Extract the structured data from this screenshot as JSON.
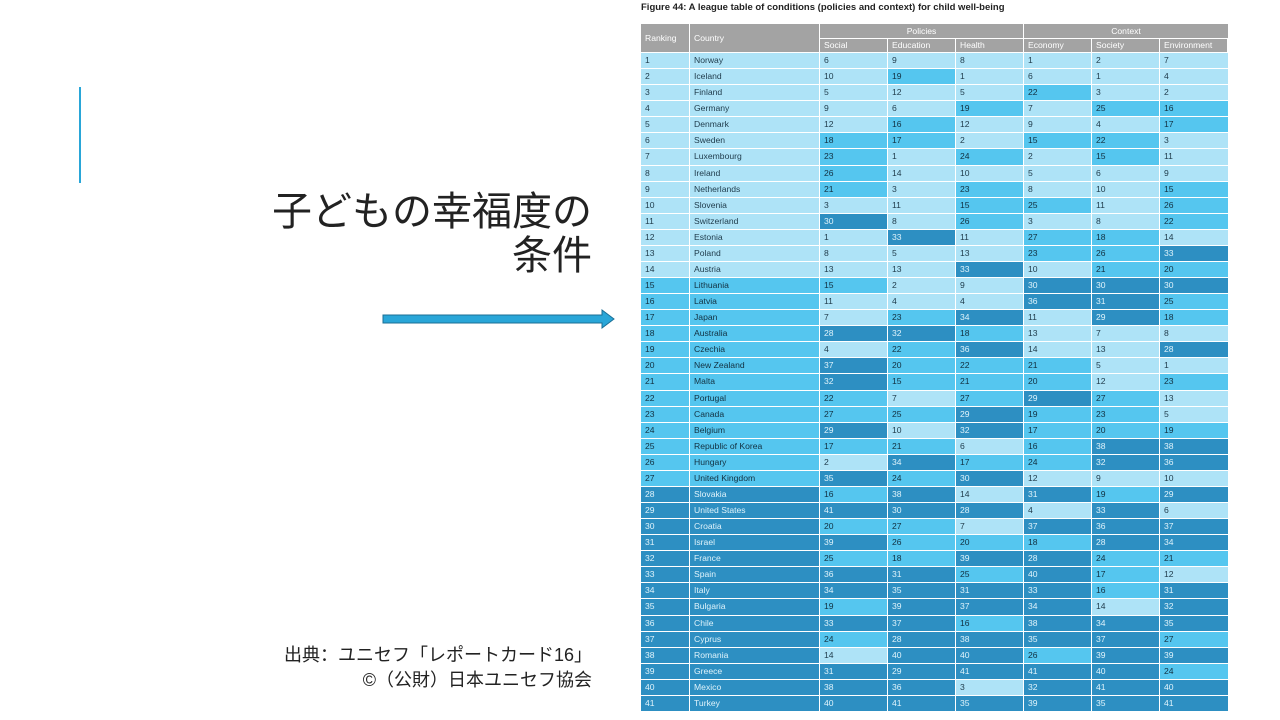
{
  "slide": {
    "title_lines": [
      "子どもの幸福度の",
      "条件"
    ],
    "source_lines": [
      "出典：ユニセフ「レポートカード16」",
      "©（公財）日本ユニセフ協会"
    ]
  },
  "table": {
    "title": "Figure 44: A league table of conditions (policies and context) for child well-being",
    "group_headers": [
      "Policies",
      "Context"
    ],
    "columns": [
      "Ranking",
      "Country",
      "Social",
      "Education",
      "Health",
      "Economy",
      "Society",
      "Environment"
    ],
    "rows": [
      [
        1,
        "Norway",
        6,
        9,
        8,
        1,
        2,
        7
      ],
      [
        2,
        "Iceland",
        10,
        19,
        1,
        6,
        1,
        4
      ],
      [
        3,
        "Finland",
        5,
        12,
        5,
        22,
        3,
        2
      ],
      [
        4,
        "Germany",
        9,
        6,
        19,
        7,
        25,
        16
      ],
      [
        5,
        "Denmark",
        12,
        16,
        12,
        9,
        4,
        17
      ],
      [
        6,
        "Sweden",
        18,
        17,
        2,
        15,
        22,
        3
      ],
      [
        7,
        "Luxembourg",
        23,
        1,
        24,
        2,
        15,
        11
      ],
      [
        8,
        "Ireland",
        26,
        14,
        10,
        5,
        6,
        9
      ],
      [
        9,
        "Netherlands",
        21,
        3,
        23,
        8,
        10,
        15
      ],
      [
        10,
        "Slovenia",
        3,
        11,
        15,
        25,
        11,
        26
      ],
      [
        11,
        "Switzerland",
        30,
        8,
        26,
        3,
        8,
        22
      ],
      [
        12,
        "Estonia",
        1,
        33,
        11,
        27,
        18,
        14
      ],
      [
        13,
        "Poland",
        8,
        5,
        13,
        23,
        26,
        33
      ],
      [
        14,
        "Austria",
        13,
        13,
        33,
        10,
        21,
        20
      ],
      [
        15,
        "Lithuania",
        15,
        2,
        9,
        30,
        30,
        30
      ],
      [
        16,
        "Latvia",
        11,
        4,
        4,
        36,
        31,
        25
      ],
      [
        17,
        "Japan",
        7,
        23,
        34,
        11,
        29,
        18
      ],
      [
        18,
        "Australia",
        28,
        32,
        18,
        13,
        7,
        8
      ],
      [
        19,
        "Czechia",
        4,
        22,
        36,
        14,
        13,
        28
      ],
      [
        20,
        "New Zealand",
        37,
        20,
        22,
        21,
        5,
        1
      ],
      [
        21,
        "Malta",
        32,
        15,
        21,
        20,
        12,
        23
      ],
      [
        22,
        "Portugal",
        22,
        7,
        27,
        29,
        27,
        13
      ],
      [
        23,
        "Canada",
        27,
        25,
        29,
        19,
        23,
        5
      ],
      [
        24,
        "Belgium",
        29,
        10,
        32,
        17,
        20,
        19
      ],
      [
        25,
        "Republic of Korea",
        17,
        21,
        6,
        16,
        38,
        38
      ],
      [
        26,
        "Hungary",
        2,
        34,
        17,
        24,
        32,
        36
      ],
      [
        27,
        "United Kingdom",
        35,
        24,
        30,
        12,
        9,
        10
      ],
      [
        28,
        "Slovakia",
        16,
        38,
        14,
        31,
        19,
        29
      ],
      [
        29,
        "United States",
        41,
        30,
        28,
        4,
        33,
        6
      ],
      [
        30,
        "Croatia",
        20,
        27,
        7,
        37,
        36,
        37
      ],
      [
        31,
        "Israel",
        39,
        26,
        20,
        18,
        28,
        34
      ],
      [
        32,
        "France",
        25,
        18,
        39,
        28,
        24,
        21
      ],
      [
        33,
        "Spain",
        36,
        31,
        25,
        40,
        17,
        12
      ],
      [
        34,
        "Italy",
        34,
        35,
        31,
        33,
        16,
        31
      ],
      [
        35,
        "Bulgaria",
        19,
        39,
        37,
        34,
        14,
        32
      ],
      [
        36,
        "Chile",
        33,
        37,
        16,
        38,
        34,
        35
      ],
      [
        37,
        "Cyprus",
        24,
        28,
        38,
        35,
        37,
        27
      ],
      [
        38,
        "Romania",
        14,
        40,
        40,
        26,
        39,
        39
      ],
      [
        39,
        "Greece",
        31,
        29,
        41,
        41,
        40,
        24
      ],
      [
        40,
        "Mexico",
        38,
        36,
        3,
        32,
        41,
        40
      ],
      [
        41,
        "Turkey",
        40,
        41,
        35,
        39,
        35,
        41
      ]
    ]
  }
}
